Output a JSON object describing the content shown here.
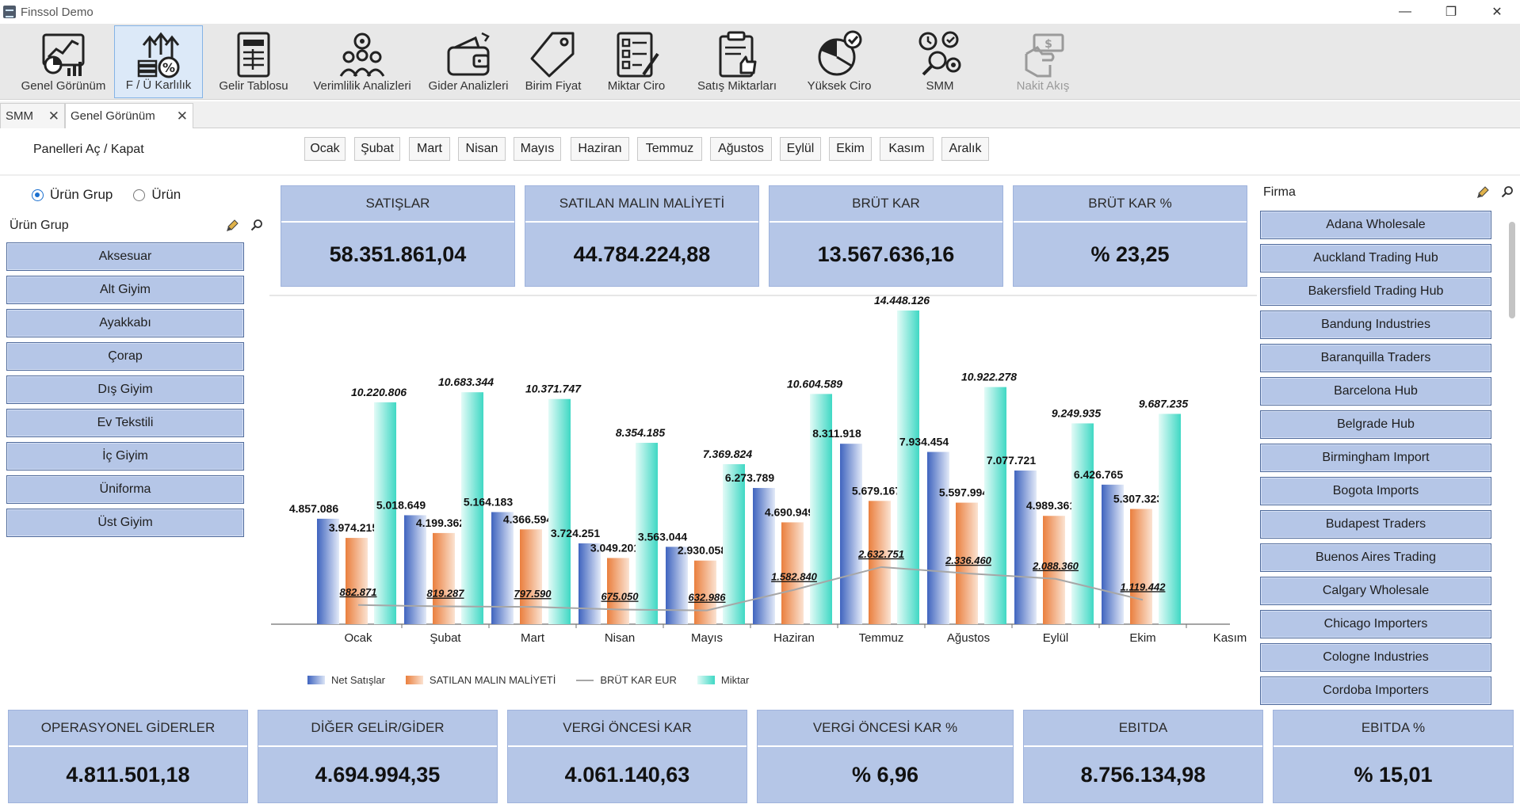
{
  "window": {
    "title": "Finssol Demo",
    "minimize": "—",
    "maximize": "❐",
    "close": "✕"
  },
  "toolbar": [
    {
      "label": "Genel Görünüm",
      "icon": "dashboard-chart-icon"
    },
    {
      "label": "F / Ü Karlılık",
      "icon": "profit-growth-icon",
      "active": true
    },
    {
      "label": "Gelir Tablosu",
      "icon": "spreadsheet-icon"
    },
    {
      "label": "Verimlilik Analizleri",
      "icon": "team-gears-icon"
    },
    {
      "label": "Gider Analizleri",
      "icon": "wallet-icon"
    },
    {
      "label": "Birim Fiyat",
      "icon": "price-tag-icon"
    },
    {
      "label": "Miktar Ciro",
      "icon": "checklist-icon"
    },
    {
      "label": "Satış Miktarları",
      "icon": "clipboard-thumbs-icon"
    },
    {
      "label": "Yüksek Ciro",
      "icon": "pie-check-icon"
    },
    {
      "label": "SMM",
      "icon": "analysis-gears-icon"
    },
    {
      "label": "Nakit Akış",
      "icon": "cash-hand-icon",
      "disabled": true
    }
  ],
  "tabs": [
    {
      "label": "SMM",
      "close": "✕"
    },
    {
      "label": "Genel Görünüm",
      "close": "✕"
    }
  ],
  "monthbar": {
    "toggle_label": "Panelleri Aç / Kapat",
    "months": [
      "Ocak",
      "Şubat",
      "Mart",
      "Nisan",
      "Mayıs",
      "Haziran",
      "Temmuz",
      "Ağustos",
      "Eylül",
      "Ekim",
      "Kasım",
      "Aralık"
    ]
  },
  "left_panel": {
    "radio_group": "Ürün Grup",
    "radio_product": "Ürün",
    "title": "Ürün Grup",
    "items": [
      "Aksesuar",
      "Alt Giyim",
      "Ayakkabı",
      "Çorap",
      "Dış Giyim",
      "Ev Tekstili",
      "İç Giyim",
      "Üniforma",
      "Üst Giyim"
    ]
  },
  "right_panel": {
    "title": "Firma",
    "items": [
      "Adana Wholesale",
      "Auckland Trading Hub",
      "Bakersfield Trading Hub",
      "Bandung Industries",
      "Baranquilla Traders",
      "Barcelona Hub",
      "Belgrade Hub",
      "Birmingham Import",
      "Bogota Imports",
      "Budapest Traders",
      "Buenos Aires Trading",
      "Calgary Wholesale",
      "Chicago Importers",
      "Cologne Industries",
      "Cordoba Importers"
    ]
  },
  "kpi_top": [
    {
      "title": "SATIŞLAR",
      "value": "58.351.861,04"
    },
    {
      "title": "SATILAN MALIN MALİYETİ",
      "value": "44.784.224,88"
    },
    {
      "title": "BRÜT KAR",
      "value": "13.567.636,16"
    },
    {
      "title": "BRÜT KAR %",
      "value": "% 23,25"
    }
  ],
  "kpi_bottom": [
    {
      "title": "OPERASYONEL GİDERLER",
      "value": "4.811.501,18"
    },
    {
      "title": "DİĞER GELİR/GİDER",
      "value": "4.694.994,35"
    },
    {
      "title": "VERGİ ÖNCESİ KAR",
      "value": "4.061.140,63"
    },
    {
      "title": "VERGİ ÖNCESİ KAR %",
      "value": "% 6,96"
    },
    {
      "title": "EBITDA",
      "value": "8.756.134,98"
    },
    {
      "title": "EBITDA %",
      "value": "% 15,01"
    }
  ],
  "chart_data": {
    "type": "bar",
    "categories": [
      "Ocak",
      "Şubat",
      "Mart",
      "Nisan",
      "Mayıs",
      "Haziran",
      "Temmuz",
      "Ağustos",
      "Eylül",
      "Ekim",
      "Kasım"
    ],
    "series": [
      {
        "name": "Net Satışlar",
        "type": "bar",
        "color": "#4f72c6",
        "values": [
          4857086,
          5018649,
          5164183,
          3724251,
          3563044,
          6273789,
          8311918,
          7934454,
          7077721,
          6426765,
          null
        ],
        "labels": [
          "4.857.086",
          "5.018.649",
          "5.164.183",
          "3.724.251",
          "3.563.044",
          "6.273.789",
          "8.311.918",
          "7.934.454",
          "7.077.721",
          "6.426.765",
          ""
        ]
      },
      {
        "name": "SATILAN MALIN MALİYETİ",
        "type": "bar",
        "color": "#ee8f52",
        "values": [
          3974215,
          4199362,
          4366594,
          3049201,
          2930058,
          4690949,
          5679167,
          5597994,
          4989361,
          5307323,
          null
        ],
        "labels": [
          "3.974.215",
          "4.199.362",
          "4.366.594",
          "3.049.201",
          "2.930.058",
          "4.690.949",
          "5.679.167",
          "5.597.994",
          "4.989.361",
          "5.307.323",
          ""
        ]
      },
      {
        "name": "BRÜT KAR EUR",
        "type": "line",
        "color": "#a6a6a6",
        "values": [
          882871,
          819287,
          797590,
          675050,
          632986,
          1582840,
          2632751,
          2336460,
          2088360,
          1119442,
          null
        ],
        "labels": [
          "882.871",
          "819.287",
          "797.590",
          "675.050",
          "632.986",
          "1.582.840",
          "2.632.751",
          "2.336.460",
          "2.088.360",
          "1.119.442",
          ""
        ]
      },
      {
        "name": "Miktar",
        "type": "bar",
        "color": "#49dcc9",
        "values": [
          10220806,
          10683344,
          10371747,
          8354185,
          7369824,
          10604589,
          14448126,
          10922278,
          9249935,
          9687235,
          null
        ],
        "labels": [
          "10.220.806",
          "10.683.344",
          "10.371.747",
          "8.354.185",
          "7.369.824",
          "10.604.589",
          "14.448.126",
          "10.922.278",
          "9.249.935",
          "9.687.235",
          ""
        ]
      }
    ],
    "legend_position": "bottom-left",
    "ylim": [
      0,
      14448126
    ]
  }
}
